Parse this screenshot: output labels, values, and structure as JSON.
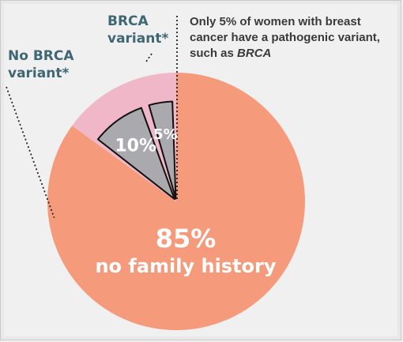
{
  "chart_data": {
    "type": "pie",
    "slices": [
      {
        "name": "no family history",
        "value": 85,
        "label": "85%",
        "sublabel": "no family history",
        "color": "#f59a7a"
      },
      {
        "name": "No BRCA variant*",
        "value": 10,
        "label": "10%",
        "color": "#a9a9ae"
      },
      {
        "name": "BRCA variant*",
        "value": 5,
        "label": "5%",
        "color": "#a9a9ae"
      }
    ],
    "gap_color": "#f0b7c8",
    "annotation": {
      "text_before": "Only 5% of women with breast cancer have a pathogenic variant, such as ",
      "text_emph": "BRCA"
    },
    "callouts": {
      "brca": [
        "BRCA",
        "variant*"
      ],
      "no_brca": [
        "No BRCA",
        "variant*"
      ]
    }
  }
}
